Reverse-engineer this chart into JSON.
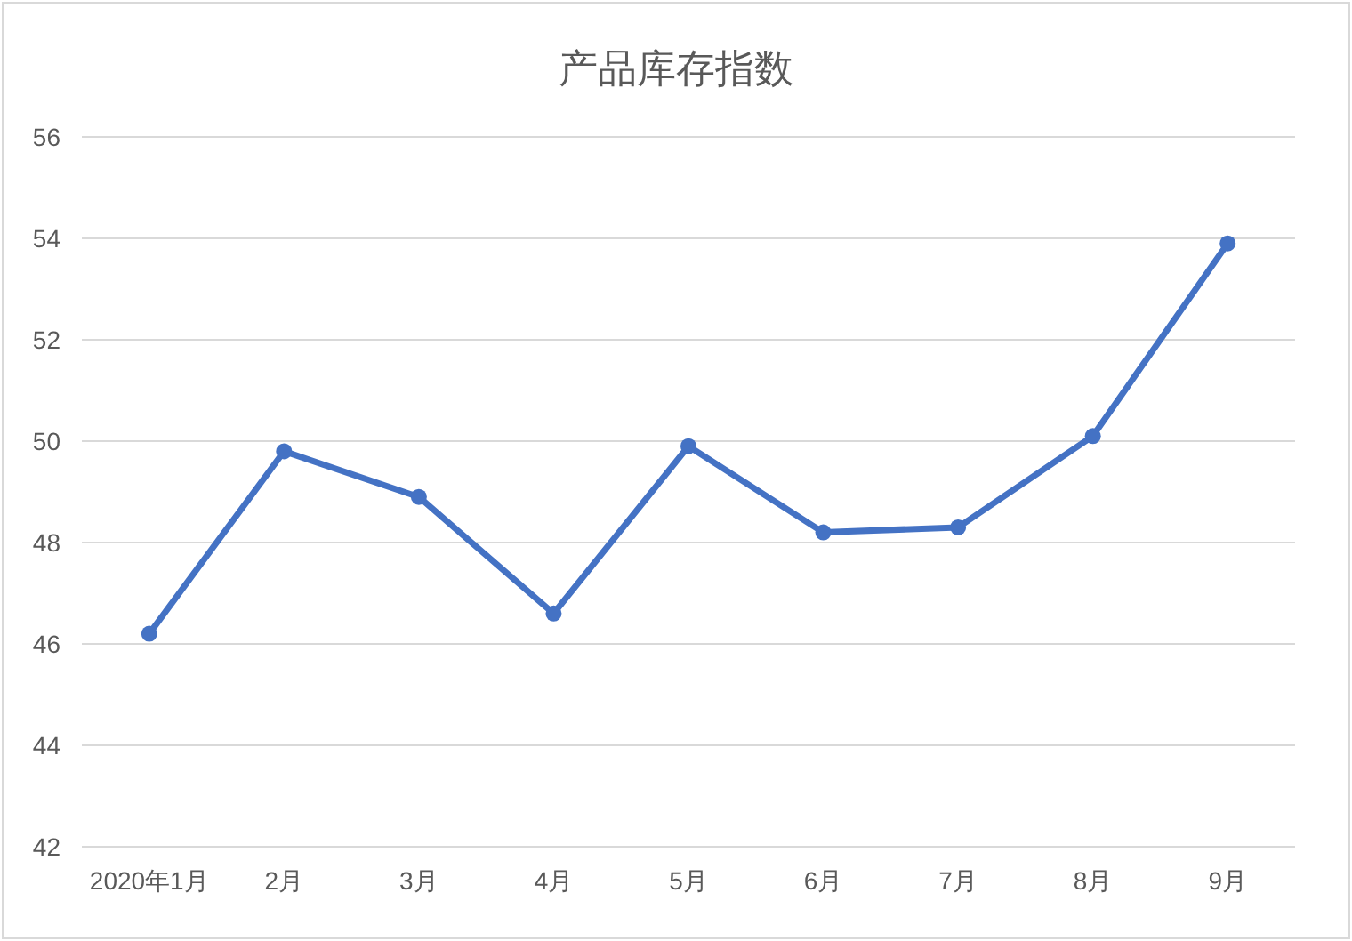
{
  "chart_data": {
    "type": "line",
    "title": "产品库存指数",
    "categories": [
      "2020年1月",
      "2月",
      "3月",
      "4月",
      "5月",
      "6月",
      "7月",
      "8月",
      "9月"
    ],
    "series": [
      {
        "color": "#4472c4",
        "values": [
          46.2,
          49.8,
          48.9,
          46.6,
          49.9,
          48.2,
          48.3,
          50.1,
          53.9
        ]
      }
    ],
    "ylim": [
      42,
      56
    ],
    "yticks": [
      42,
      44,
      46,
      48,
      50,
      52,
      54,
      56
    ],
    "grid": "y",
    "marker": "circle",
    "line_style": "solid"
  }
}
